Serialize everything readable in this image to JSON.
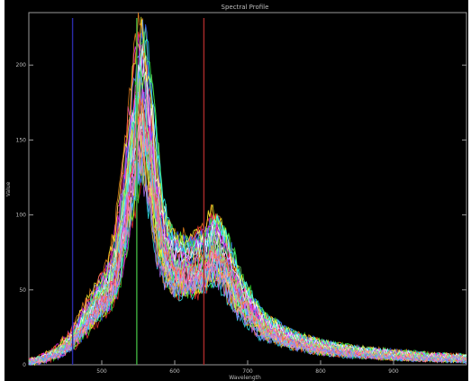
{
  "window": {
    "title": "Spectral Profile"
  },
  "chart_data": {
    "type": "line",
    "title": "Spectral Profile",
    "xlabel": "Wavelength",
    "ylabel": "Value",
    "xlim": [
      400,
      1000
    ],
    "ylim": [
      0,
      235
    ],
    "xticks": [
      500,
      600,
      700,
      800,
      900
    ],
    "yticks": [
      0,
      50,
      100,
      150,
      200
    ],
    "grid": false,
    "legend": "none",
    "markers": [
      {
        "x": 460,
        "color": "#2a2aa8"
      },
      {
        "x": 548,
        "color": "#3fae3f"
      },
      {
        "x": 640,
        "color": "#a82a2a"
      }
    ],
    "series_colors": [
      "#ff3030",
      "#30e030",
      "#3060ff",
      "#ffff30",
      "#30ffff",
      "#ff30ff",
      "#ffffff",
      "#ff9020",
      "#b070ff",
      "#80ff80",
      "#ff80b0",
      "#60a0ff"
    ],
    "profile": {
      "x": [
        400,
        420,
        440,
        460,
        480,
        500,
        510,
        520,
        530,
        540,
        550,
        555,
        560,
        570,
        580,
        590,
        600,
        620,
        640,
        655,
        670,
        690,
        720,
        760,
        800,
        850,
        900,
        950,
        1000
      ],
      "y": [
        2,
        5,
        10,
        20,
        38,
        55,
        62,
        80,
        118,
        160,
        200,
        213,
        205,
        160,
        110,
        88,
        80,
        78,
        84,
        95,
        82,
        55,
        32,
        20,
        14,
        10,
        8,
        6,
        5
      ]
    }
  }
}
